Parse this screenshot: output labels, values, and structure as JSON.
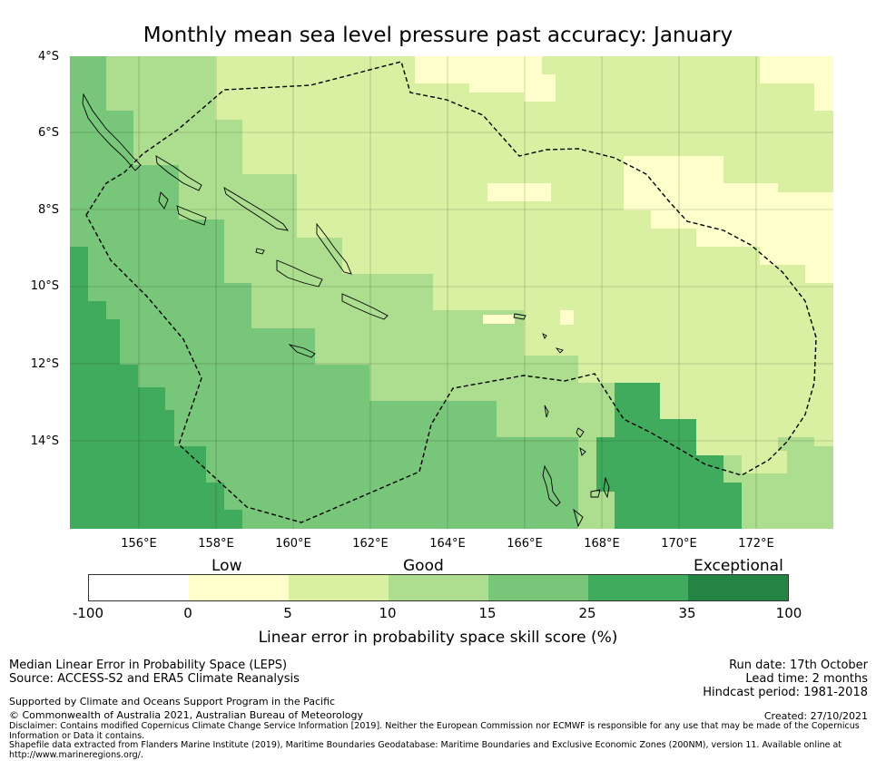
{
  "title": "Monthly mean sea level pressure past accuracy: January",
  "map": {
    "lat_labels": [
      "4°S",
      "6°S",
      "8°S",
      "10°S",
      "12°S",
      "14°S"
    ],
    "lon_labels": [
      "156°E",
      "158°E",
      "160°E",
      "162°E",
      "164°E",
      "166°E",
      "168°E",
      "170°E",
      "172°E"
    ],
    "lon_range": [
      154.2,
      174.0
    ],
    "lat_range": [
      -4.0,
      -16.3
    ]
  },
  "colorbar": {
    "categories": [
      "Low",
      "Good",
      "Exceptional"
    ],
    "ticks": [
      "-100",
      "0",
      "5",
      "10",
      "15",
      "25",
      "35",
      "100"
    ],
    "colors": [
      "#ffffff",
      "#ffffcc",
      "#d9f0a3",
      "#addd8e",
      "#78c679",
      "#41ab5d",
      "#238443"
    ],
    "xlabel": "Linear error in probability space skill score (%)"
  },
  "info_left": {
    "line1": "Median Linear Error in Probability Space (LEPS)",
    "line2": "Source: ACCESS-S2 and ERA5 Climate Reanalysis",
    "line3": "Supported by Climate and Oceans Support Program in the Pacific",
    "line4": "© Commonwealth of Australia 2021, Australian Bureau of Meteorology"
  },
  "info_right": {
    "run_date": "Run date: 17th October",
    "lead_time": "Lead time: 2 months",
    "hindcast": "Hindcast period: 1981-2018",
    "created": "Created: 27/10/2021"
  },
  "disclaimer": {
    "line1": "Disclaimer: Contains modified Copernicus Climate Change Service Information [2019]. Neither the European Commission nor ECMWF is responsible for any use that may be made of the Copernicus",
    "line2": "Information or Data it contains.",
    "line3": "Shapefile data extracted from Flanders Marine Institute (2019), Maritime Boundaries Geodatabase: Maritime Boundaries and Exclusive Economic Zones (200NM), version 11. Available online at",
    "line4": "http://www.marineregions.org/."
  }
}
